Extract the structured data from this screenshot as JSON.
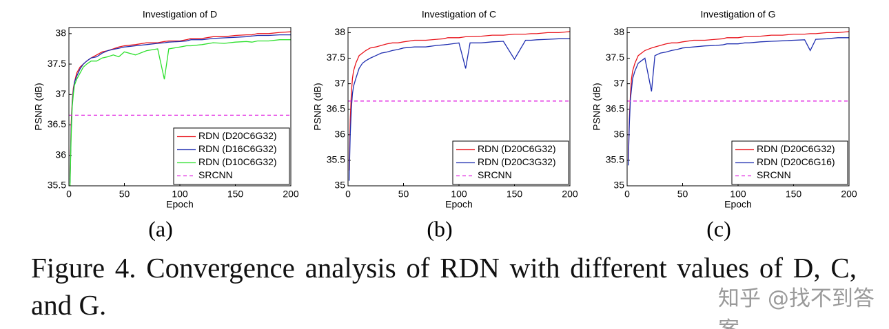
{
  "chart_data": [
    {
      "type": "line",
      "title": "Investigation of D",
      "subfigure_label": "(a)",
      "xlabel": "Epoch",
      "ylabel": "PSNR (dB)",
      "xlim": [
        0,
        200
      ],
      "xticks": [
        0,
        50,
        100,
        150,
        200
      ],
      "ylim": [
        35.5,
        38.1
      ],
      "yticks": [
        35.5,
        36,
        36.5,
        37,
        37.5,
        38
      ],
      "legend": "lower right",
      "x": [
        1,
        2,
        3,
        4,
        5,
        7,
        10,
        13,
        16,
        20,
        25,
        30,
        35,
        40,
        45,
        50,
        60,
        70,
        80,
        86,
        90,
        100,
        106,
        110,
        120,
        130,
        140,
        150,
        160,
        165,
        170,
        180,
        190,
        200
      ],
      "series": [
        {
          "name": "RDN (D20C6G32)",
          "color": "#e8141c",
          "linestyle": "solid",
          "values": [
            35.6,
            36.5,
            36.9,
            37.1,
            37.2,
            37.35,
            37.45,
            37.5,
            37.55,
            37.6,
            37.65,
            37.7,
            37.72,
            37.75,
            37.78,
            37.8,
            37.82,
            37.85,
            37.85,
            37.87,
            37.88,
            37.88,
            37.9,
            37.92,
            37.92,
            37.95,
            37.95,
            37.97,
            37.98,
            37.98,
            38.0,
            38.0,
            38.02,
            38.03
          ]
        },
        {
          "name": "RDN (D16C6G32)",
          "color": "#1f2eb0",
          "linestyle": "solid",
          "values": [
            35.55,
            36.4,
            36.85,
            37.05,
            37.2,
            37.3,
            37.42,
            37.5,
            37.55,
            37.6,
            37.62,
            37.68,
            37.72,
            37.74,
            37.76,
            37.78,
            37.8,
            37.82,
            37.84,
            37.85,
            37.86,
            37.87,
            37.88,
            37.9,
            37.9,
            37.92,
            37.93,
            37.94,
            37.95,
            37.96,
            37.97,
            37.97,
            37.98,
            37.98
          ]
        },
        {
          "name": "RDN (D10C6G32)",
          "color": "#2de02d",
          "linestyle": "solid",
          "values": [
            35.5,
            36.3,
            36.8,
            37.0,
            37.15,
            37.25,
            37.35,
            37.45,
            37.5,
            37.55,
            37.55,
            37.6,
            37.62,
            37.65,
            37.62,
            37.7,
            37.65,
            37.72,
            37.75,
            37.25,
            37.75,
            37.78,
            37.8,
            37.8,
            37.82,
            37.85,
            37.84,
            37.86,
            37.87,
            37.86,
            37.88,
            37.88,
            37.9,
            37.9
          ]
        },
        {
          "name": "SRCNN",
          "color": "#e020e0",
          "linestyle": "dashed",
          "x": [
            0,
            200
          ],
          "values": [
            36.66,
            36.66
          ]
        }
      ]
    },
    {
      "type": "line",
      "title": "Investigation of C",
      "subfigure_label": "(b)",
      "xlabel": "Epoch",
      "ylabel": "PSNR (dB)",
      "xlim": [
        0,
        200
      ],
      "xticks": [
        0,
        50,
        100,
        150,
        200
      ],
      "ylim": [
        35,
        38.1
      ],
      "yticks": [
        35,
        35.5,
        36,
        36.5,
        37,
        37.5,
        38
      ],
      "legend": "lower right",
      "x": [
        1,
        2,
        3,
        4,
        5,
        7,
        10,
        13,
        16,
        20,
        25,
        30,
        35,
        40,
        45,
        50,
        60,
        70,
        80,
        86,
        90,
        100,
        106,
        110,
        120,
        130,
        140,
        150,
        160,
        165,
        170,
        180,
        190,
        200
      ],
      "series": [
        {
          "name": "RDN (D20C6G32)",
          "color": "#e8141c",
          "linestyle": "solid",
          "values": [
            35.3,
            36.3,
            36.8,
            37.1,
            37.25,
            37.4,
            37.55,
            37.6,
            37.65,
            37.7,
            37.72,
            37.75,
            37.78,
            37.8,
            37.8,
            37.82,
            37.85,
            37.85,
            37.87,
            37.88,
            37.9,
            37.9,
            37.92,
            37.92,
            37.93,
            37.95,
            37.95,
            37.97,
            37.97,
            37.98,
            37.98,
            38.0,
            38.0,
            38.02
          ]
        },
        {
          "name": "RDN (D20C3G32)",
          "color": "#1f2eb0",
          "linestyle": "solid",
          "values": [
            35.1,
            36.0,
            36.5,
            36.8,
            36.95,
            37.1,
            37.3,
            37.4,
            37.45,
            37.5,
            37.55,
            37.6,
            37.62,
            37.65,
            37.67,
            37.7,
            37.72,
            37.72,
            37.75,
            37.76,
            37.77,
            37.8,
            37.3,
            37.8,
            37.8,
            37.82,
            37.83,
            37.48,
            37.85,
            37.85,
            37.86,
            37.87,
            37.88,
            37.88
          ]
        },
        {
          "name": "SRCNN",
          "color": "#e020e0",
          "linestyle": "dashed",
          "x": [
            0,
            200
          ],
          "values": [
            36.66,
            36.66
          ]
        }
      ]
    },
    {
      "type": "line",
      "title": "Investigation of G",
      "subfigure_label": "(c)",
      "xlabel": "Epoch",
      "ylabel": "PSNR (dB)",
      "xlim": [
        0,
        200
      ],
      "xticks": [
        0,
        50,
        100,
        150,
        200
      ],
      "ylim": [
        35,
        38.1
      ],
      "yticks": [
        35,
        35.5,
        36,
        36.5,
        37,
        37.5,
        38
      ],
      "legend": "lower right",
      "x": [
        1,
        2,
        3,
        4,
        5,
        7,
        10,
        13,
        16,
        22,
        25,
        30,
        35,
        40,
        45,
        50,
        60,
        70,
        80,
        86,
        90,
        100,
        106,
        110,
        120,
        130,
        140,
        150,
        160,
        165,
        170,
        180,
        190,
        200
      ],
      "series": [
        {
          "name": "RDN (D20C6G32)",
          "color": "#e8141c",
          "linestyle": "solid",
          "values": [
            35.5,
            36.3,
            36.8,
            37.1,
            37.25,
            37.4,
            37.55,
            37.6,
            37.65,
            37.7,
            37.72,
            37.75,
            37.78,
            37.8,
            37.8,
            37.82,
            37.85,
            37.85,
            37.87,
            37.88,
            37.9,
            37.9,
            37.92,
            37.92,
            37.93,
            37.95,
            37.95,
            37.97,
            37.97,
            37.98,
            37.98,
            38.0,
            38.0,
            38.02
          ]
        },
        {
          "name": "RDN (D20C6G16)",
          "color": "#1f2eb0",
          "linestyle": "solid",
          "values": [
            35.4,
            36.2,
            36.7,
            36.9,
            37.1,
            37.25,
            37.4,
            37.45,
            37.5,
            36.85,
            37.55,
            37.6,
            37.62,
            37.65,
            37.67,
            37.7,
            37.72,
            37.74,
            37.75,
            37.76,
            37.78,
            37.78,
            37.8,
            37.8,
            37.82,
            37.83,
            37.84,
            37.85,
            37.86,
            37.65,
            37.87,
            37.88,
            37.9,
            37.9
          ]
        },
        {
          "name": "SRCNN",
          "color": "#e020e0",
          "linestyle": "dashed",
          "x": [
            0,
            200
          ],
          "values": [
            36.66,
            36.66
          ]
        }
      ]
    }
  ],
  "caption": "Figure 4. Convergence analysis of RDN with different values of D, C, and G.",
  "watermark": "知乎 @找不到答案"
}
